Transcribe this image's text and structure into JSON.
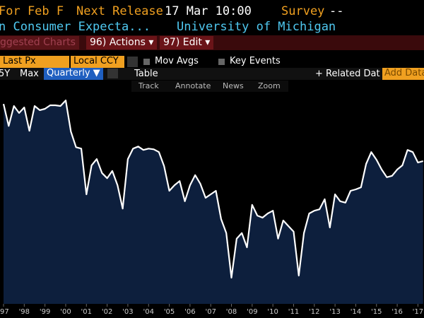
{
  "header": {
    "row1": [
      "For Feb F",
      "Next Release",
      "17 Mar 10:00",
      "Survey",
      "--"
    ],
    "row2": [
      "n Consumer Expecta...",
      "University of Michigan"
    ]
  },
  "menu": [
    "ggested Charts",
    "96) Actions ▾",
    "97) Edit ▾"
  ],
  "toolbar": {
    "field": "Last Px",
    "currency": "Local CCY",
    "options": [
      "Mov Avgs",
      "Key Events"
    ]
  },
  "ranges": [
    "5Y",
    "Max",
    "Quarterly ▼",
    "Table",
    "+ Related Data",
    "Add Data"
  ],
  "tools": [
    "Track",
    "Annotate",
    "News",
    "Zoom"
  ],
  "chart_data": {
    "type": "area",
    "line_color": "#ffffff",
    "fill_color": "#0d1f3d",
    "ylim": [
      44.3,
      108.7
    ],
    "categories": [
      "'97",
      null,
      null,
      null,
      "'98",
      null,
      null,
      null,
      "'99",
      null,
      null,
      null,
      "'00",
      null,
      null,
      null,
      "'01",
      null,
      null,
      null,
      "'02",
      null,
      null,
      null,
      "'03",
      null,
      null,
      null,
      "'04",
      null,
      null,
      null,
      "'05",
      null,
      null,
      null,
      "'06",
      null,
      null,
      null,
      "'07",
      null,
      null,
      null,
      "'08",
      null,
      null,
      null,
      "'09",
      null,
      null,
      null,
      "'10",
      null,
      null,
      null,
      "'11",
      null,
      null,
      null,
      "'12",
      null,
      null,
      null,
      "'13",
      null,
      null,
      null,
      "'14",
      null,
      null,
      null,
      "'15",
      null,
      null,
      null,
      "'16",
      null,
      null,
      null,
      "'17",
      null
    ],
    "values": [
      101.6,
      95.3,
      101.0,
      99.0,
      100.6,
      93.9,
      101.0,
      99.8,
      100.2,
      101.2,
      101.2,
      101.0,
      102.6,
      93.7,
      89.2,
      88.8,
      75.7,
      84.0,
      85.8,
      81.8,
      80.3,
      82.4,
      78.3,
      71.6,
      85.8,
      88.8,
      89.4,
      88.4,
      88.8,
      88.6,
      87.8,
      83.8,
      76.7,
      78.3,
      79.5,
      73.7,
      78.3,
      81.2,
      78.7,
      74.7,
      75.7,
      76.7,
      68.6,
      64.6,
      51.8,
      63.0,
      64.6,
      60.5,
      72.7,
      69.6,
      69.0,
      70.2,
      71.0,
      63.0,
      68.2,
      66.6,
      65.0,
      52.4,
      64.6,
      70.2,
      71.0,
      71.4,
      74.3,
      66.2,
      75.7,
      73.7,
      73.3,
      76.7,
      77.1,
      77.7,
      84.4,
      87.8,
      85.6,
      82.8,
      80.6,
      81.0,
      82.8,
      84.0,
      88.4,
      87.8,
      84.8,
      85.2
    ]
  }
}
